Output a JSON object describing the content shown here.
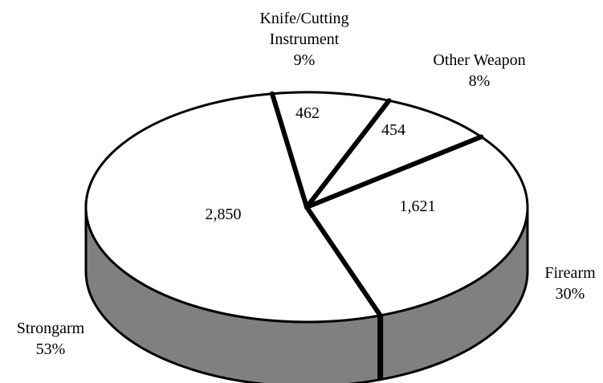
{
  "chart_data": {
    "type": "pie",
    "style": "3d-exploded-none",
    "slices": [
      {
        "name_lines": [
          "Knife/Cutting",
          "Instrument"
        ],
        "percent_label": "9%",
        "value_label": "462",
        "value": 462
      },
      {
        "name_lines": [
          "Other Weapon"
        ],
        "percent_label": "8%",
        "value_label": "454",
        "value": 454
      },
      {
        "name_lines": [
          "Firearm"
        ],
        "percent_label": "30%",
        "value_label": "1,621",
        "value": 1621
      },
      {
        "name_lines": [
          "Strongarm"
        ],
        "percent_label": "53%",
        "value_label": "2,850",
        "value": 2850
      }
    ],
    "colors": {
      "top": "#ffffff",
      "side": "#808080",
      "stroke": "#000000"
    }
  }
}
